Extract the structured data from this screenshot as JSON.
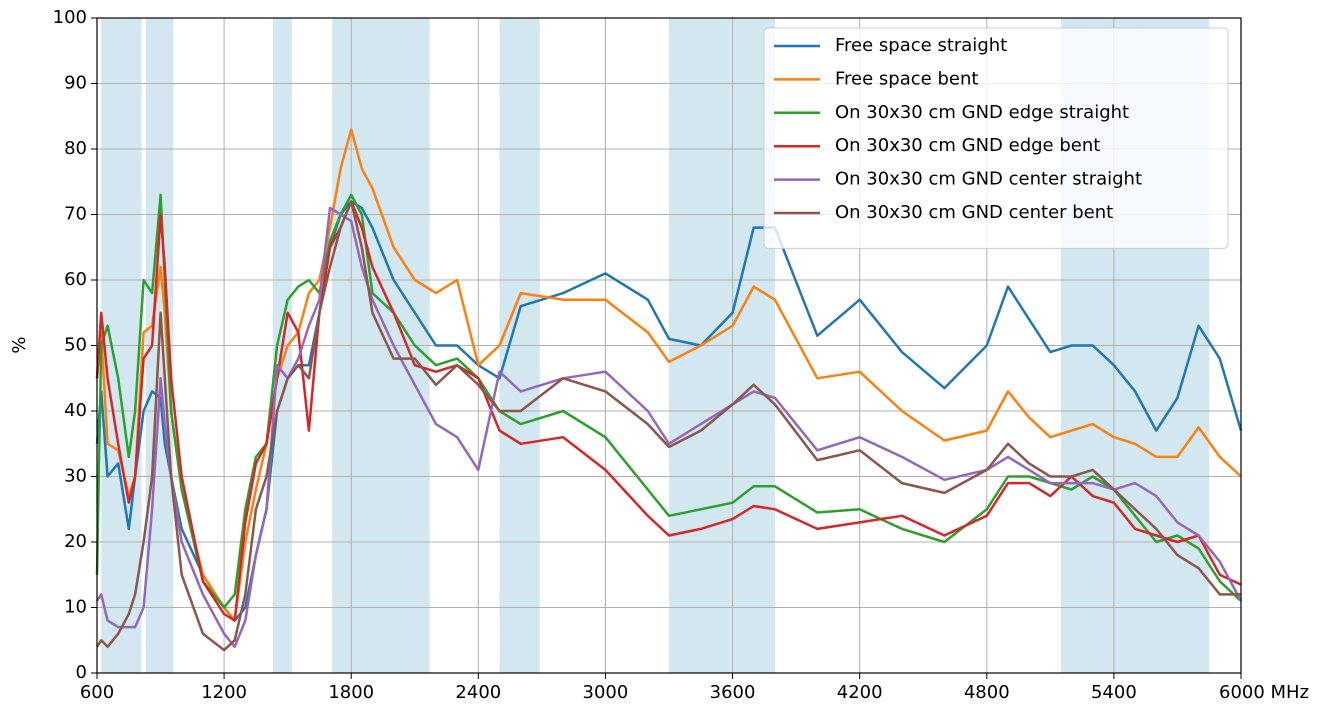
{
  "chart_data": {
    "type": "line",
    "ylabel": "%",
    "xlim": [
      600,
      6000
    ],
    "xticks": [
      600,
      1200,
      1800,
      2400,
      3000,
      3600,
      4200,
      4800,
      5400,
      {
        "value": 6000,
        "label": "6000 MHz"
      }
    ],
    "ylim": [
      0,
      100
    ],
    "yticks": [
      0,
      10,
      20,
      30,
      40,
      50,
      60,
      70,
      80,
      90,
      100
    ],
    "grid": true,
    "legend": "upper right",
    "band_color": "#d3e7f0",
    "bands": [
      [
        620,
        810
      ],
      [
        830,
        960
      ],
      [
        1430,
        1520
      ],
      [
        1710,
        2170
      ],
      [
        2500,
        2690
      ],
      [
        3300,
        3800
      ],
      [
        5150,
        5850
      ]
    ],
    "x": [
      600,
      620,
      650,
      700,
      750,
      780,
      820,
      860,
      900,
      920,
      950,
      1000,
      1100,
      1200,
      1250,
      1300,
      1350,
      1400,
      1450,
      1500,
      1550,
      1600,
      1650,
      1700,
      1750,
      1800,
      1850,
      1900,
      2000,
      2100,
      2200,
      2300,
      2400,
      2500,
      2600,
      2800,
      3000,
      3200,
      3300,
      3450,
      3600,
      3700,
      3800,
      4000,
      4200,
      4400,
      4600,
      4800,
      4900,
      5000,
      5100,
      5200,
      5300,
      5400,
      5500,
      5600,
      5700,
      5800,
      5900,
      6000
    ],
    "series": [
      {
        "name": "Free space straight",
        "color": "#1f77b4",
        "values": [
          35,
          43,
          30,
          32,
          22,
          30,
          40,
          43,
          42,
          35,
          30,
          22,
          15,
          10,
          8,
          10,
          18,
          25,
          40,
          45,
          47,
          47,
          55,
          65,
          70,
          72,
          71,
          68,
          60,
          55,
          50,
          50,
          47,
          45,
          56,
          58,
          61,
          57,
          51,
          50,
          55,
          68,
          68,
          51.5,
          57,
          49,
          43.5,
          50,
          59,
          54,
          49,
          50,
          50,
          47,
          43,
          37,
          42,
          53,
          48,
          37
        ]
      },
      {
        "name": "Free space bent",
        "color": "#ff7f0e",
        "values": [
          45,
          52,
          35,
          34,
          27,
          30,
          52,
          53,
          62,
          55,
          40,
          28,
          15,
          10,
          8,
          20,
          28,
          35,
          45,
          50,
          52,
          58,
          60,
          68,
          77,
          83,
          77,
          74,
          65,
          60,
          58,
          60,
          47,
          50,
          58,
          57,
          57,
          52,
          47.5,
          50,
          53,
          59,
          57,
          45,
          46,
          40,
          35.5,
          37,
          43,
          39,
          36,
          37,
          38,
          36,
          35,
          33,
          33,
          37.5,
          33,
          30
        ]
      },
      {
        "name": "On 30x30 cm GND edge straight",
        "color": "#2ca02c",
        "values": [
          15,
          50,
          53,
          45,
          33,
          40,
          60,
          58,
          73,
          60,
          40,
          28,
          14,
          10,
          12,
          25,
          33,
          35,
          50,
          57,
          59,
          60,
          58,
          66,
          70,
          73,
          70,
          58,
          55,
          50,
          47,
          48,
          45,
          40,
          38,
          40,
          36,
          28,
          24,
          25,
          26,
          28.5,
          28.5,
          24.5,
          25,
          22,
          20,
          25,
          30,
          30,
          29,
          28,
          30,
          28,
          24,
          20,
          21,
          19,
          14,
          11
        ]
      },
      {
        "name": "On 30x30 cm GND edge bent",
        "color": "#d62728",
        "values": [
          45,
          55,
          45,
          35,
          26,
          30,
          48,
          50,
          70,
          62,
          45,
          30,
          14,
          9,
          8,
          23,
          32,
          35,
          45,
          55,
          52,
          37,
          55,
          65,
          68,
          72,
          68,
          62,
          55,
          47,
          46,
          47,
          45,
          37,
          35,
          36,
          31,
          24,
          21,
          22,
          23.5,
          25.5,
          25,
          22,
          23,
          24,
          21,
          24,
          29,
          29,
          27,
          30,
          27,
          26,
          22,
          21,
          20,
          21,
          15,
          13.5
        ]
      },
      {
        "name": "On 30x30 cm GND center straight",
        "color": "#9467bd",
        "values": [
          11,
          12,
          8,
          7,
          7,
          7,
          10,
          25,
          45,
          38,
          30,
          20,
          12,
          6,
          4,
          8,
          18,
          25,
          47,
          45,
          48,
          53,
          57,
          71,
          70,
          69,
          62,
          57,
          50,
          44,
          38,
          36,
          31,
          46,
          43,
          45,
          46,
          40,
          35,
          38,
          41,
          43,
          42,
          34,
          36,
          33,
          29.5,
          31,
          33,
          31,
          29,
          29,
          29,
          28,
          29,
          27,
          23,
          21,
          17,
          11
        ]
      },
      {
        "name": "On 30x30 cm GND center bent",
        "color": "#8c564b",
        "values": [
          4,
          5,
          4,
          6,
          9,
          12,
          20,
          30,
          55,
          45,
          30,
          15,
          6,
          3.5,
          5,
          12,
          25,
          30,
          40,
          45,
          47,
          45,
          55,
          62,
          68,
          72,
          65,
          55,
          48,
          48,
          44,
          47,
          44,
          40,
          40,
          45,
          43,
          38,
          34.5,
          37,
          41,
          44,
          41,
          32.5,
          34,
          29,
          27.5,
          31,
          35,
          32,
          30,
          30,
          31,
          28,
          25,
          22,
          18,
          16,
          12,
          12
        ]
      }
    ]
  }
}
